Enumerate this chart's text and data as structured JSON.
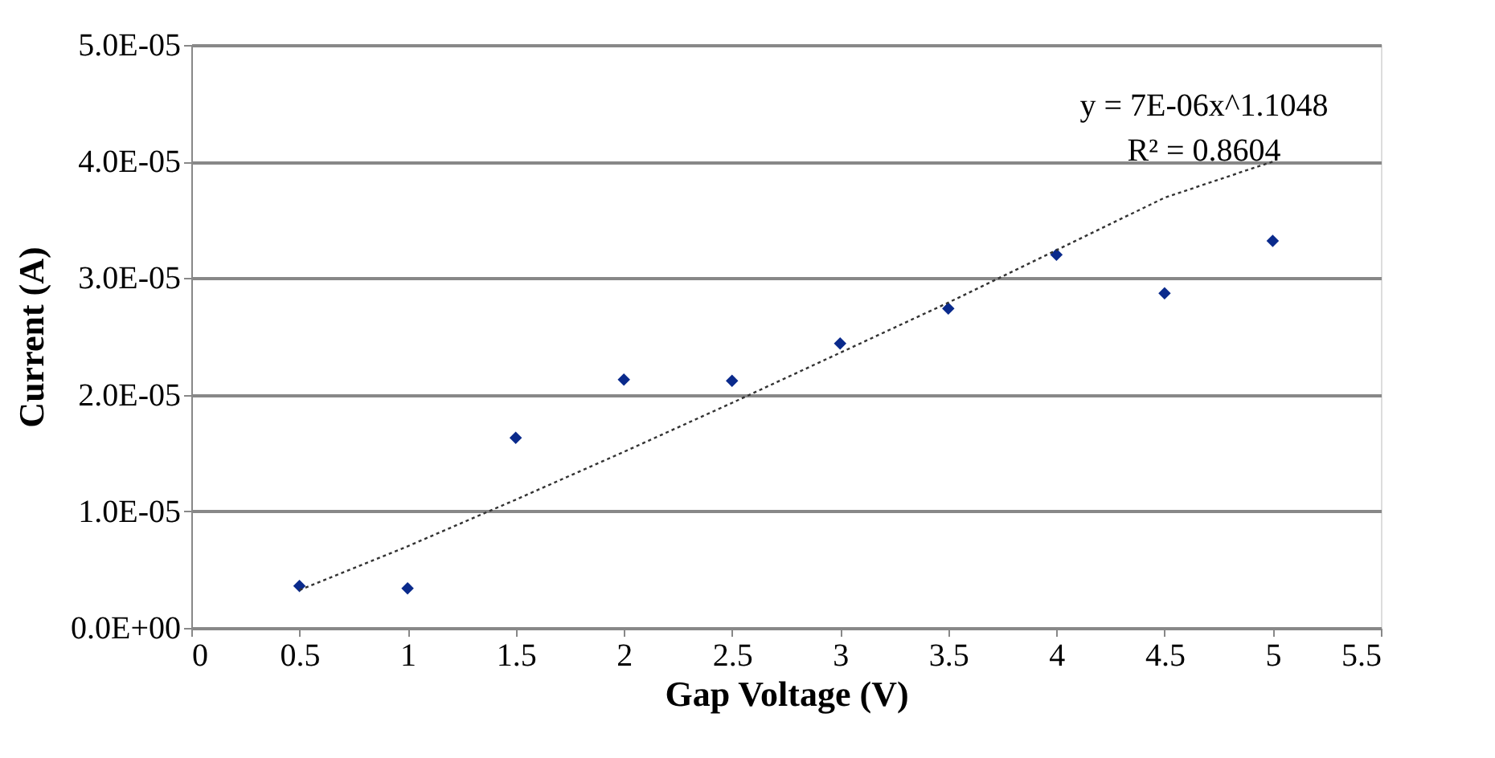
{
  "chart_data": {
    "type": "scatter",
    "xlabel": "Gap Voltage (V)",
    "ylabel": "Current (A)",
    "x": [
      0.5,
      1,
      1.5,
      2,
      2.5,
      3,
      3.5,
      4,
      4.5,
      5
    ],
    "series": [
      {
        "color": "#0a2a8c",
        "marker": "diamond",
        "values": [
          3.6e-06,
          3.4e-06,
          1.63e-05,
          2.13e-05,
          2.12e-05,
          2.44e-05,
          2.74e-05,
          3.2e-05,
          2.87e-05,
          3.32e-05
        ]
      },
      {
        "type": "line",
        "color": "#333333",
        "line_style": "dotted",
        "marker": "none",
        "x": [
          0.5,
          1,
          1.5,
          2,
          2.5,
          3,
          3.5,
          4,
          4.5,
          5
        ],
        "values": [
          3.25e-06,
          7e-06,
          1.1e-05,
          1.51e-05,
          1.93e-05,
          2.36e-05,
          2.79e-05,
          3.24e-05,
          3.69e-05,
          4e-05
        ]
      }
    ],
    "xlim": [
      0,
      5.5
    ],
    "xticks": [
      0,
      0.5,
      1,
      1.5,
      2,
      2.5,
      3,
      3.5,
      4,
      4.5,
      5,
      5.5
    ],
    "ylim": [
      0,
      5e-05
    ],
    "yticks": [
      {
        "value": 0,
        "label": "0.0E+00"
      },
      {
        "value": 1e-05,
        "label": "1.0E-05"
      },
      {
        "value": 2e-05,
        "label": "2.0E-05"
      },
      {
        "value": 3e-05,
        "label": "3.0E-05"
      },
      {
        "value": 4e-05,
        "label": "4.0E-05"
      },
      {
        "value": 5e-05,
        "label": "5.0E-05"
      }
    ],
    "grid": "y",
    "annotations": [
      "y = 7E-06x^1.1048",
      "R² = 0.8604"
    ]
  }
}
